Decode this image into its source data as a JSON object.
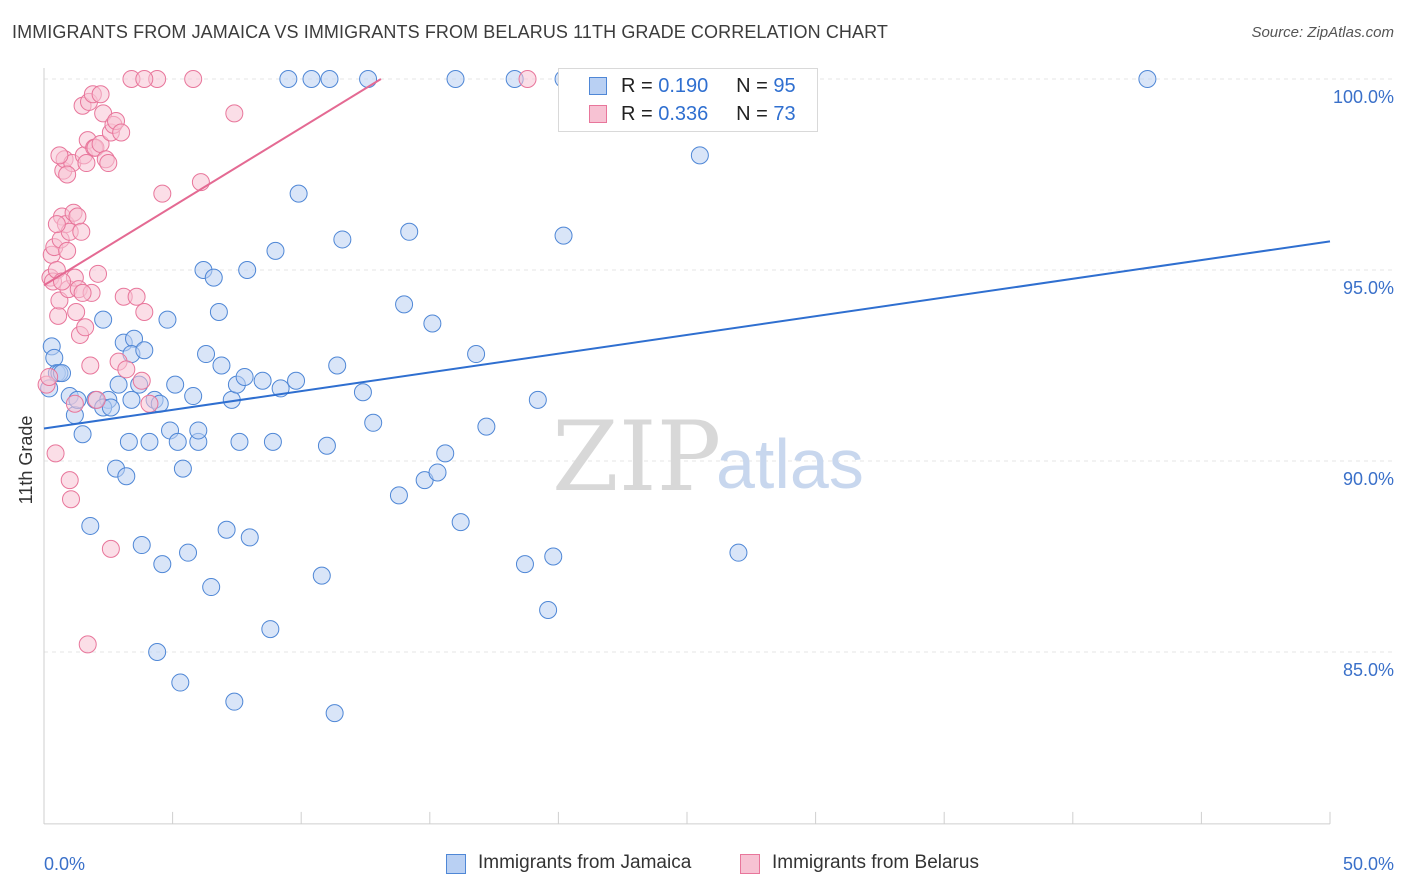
{
  "title": "IMMIGRANTS FROM JAMAICA VS IMMIGRANTS FROM BELARUS 11TH GRADE CORRELATION CHART",
  "source": "Source: ZipAtlas.com",
  "watermark": {
    "zip": "ZIP",
    "atlas": "atlas"
  },
  "colors": {
    "jamaica_fill": "#b9d0f3",
    "jamaica_stroke": "#4f87d6",
    "jamaica_line": "#2f6fd0",
    "belarus_fill": "#f7c2d3",
    "belarus_stroke": "#e8769b",
    "belarus_line": "#e46a93",
    "axis_label": "#3a70c9",
    "grid": "#e6e6e6"
  },
  "stats": [
    {
      "series": "Immigrants from Jamaica",
      "r_label": "R =",
      "r_value": "0.190",
      "n_label": "N =",
      "n_value": "95"
    },
    {
      "series": "Immigrants from Belarus",
      "r_label": "R =",
      "r_value": "0.336",
      "n_label": "N =",
      "n_value": "73"
    }
  ],
  "legend": [
    {
      "label": "Immigrants from Jamaica"
    },
    {
      "label": "Immigrants from Belarus"
    }
  ],
  "chart_data": {
    "type": "scatter",
    "title": "IMMIGRANTS FROM JAMAICA VS IMMIGRANTS FROM BELARUS 11TH GRADE CORRELATION CHART",
    "xlabel": "",
    "ylabel": "11th Grade",
    "xlim": [
      0,
      50
    ],
    "ylim": [
      80.5,
      100.5
    ],
    "x_tick_labels": [
      {
        "value": 0,
        "label": "0.0%"
      },
      {
        "value": 50,
        "label": "50.0%"
      }
    ],
    "y_tick_labels": [
      {
        "value": 100,
        "label": "100.0%"
      },
      {
        "value": 95,
        "label": "95.0%"
      },
      {
        "value": 90,
        "label": "90.0%"
      },
      {
        "value": 85,
        "label": "85.0%"
      }
    ],
    "x_minor_ticks": [
      0,
      5,
      10,
      15,
      20,
      25,
      30,
      35,
      40,
      45,
      50
    ],
    "grid_y": [
      100,
      95,
      90,
      85
    ],
    "series": [
      {
        "name": "Immigrants from Jamaica",
        "trend": {
          "x": [
            0,
            50
          ],
          "y": [
            90.85,
            95.75
          ]
        },
        "points": [
          [
            0.2,
            91.9
          ],
          [
            0.3,
            93.0
          ],
          [
            0.4,
            92.7
          ],
          [
            0.5,
            92.3
          ],
          [
            0.6,
            92.3
          ],
          [
            0.7,
            92.3
          ],
          [
            1.0,
            91.7
          ],
          [
            1.2,
            91.2
          ],
          [
            1.5,
            90.7
          ],
          [
            1.3,
            91.6
          ],
          [
            1.8,
            88.3
          ],
          [
            2.3,
            93.7
          ],
          [
            2.0,
            91.6
          ],
          [
            2.5,
            91.6
          ],
          [
            2.3,
            91.4
          ],
          [
            2.6,
            91.4
          ],
          [
            2.8,
            89.8
          ],
          [
            2.9,
            92.0
          ],
          [
            3.1,
            93.1
          ],
          [
            3.2,
            89.6
          ],
          [
            3.3,
            90.5
          ],
          [
            3.4,
            91.6
          ],
          [
            3.5,
            93.2
          ],
          [
            3.4,
            92.8
          ],
          [
            3.7,
            92.0
          ],
          [
            3.8,
            87.8
          ],
          [
            3.9,
            92.9
          ],
          [
            4.1,
            90.5
          ],
          [
            4.3,
            91.6
          ],
          [
            4.4,
            85.0
          ],
          [
            4.5,
            91.5
          ],
          [
            4.6,
            87.3
          ],
          [
            4.8,
            93.7
          ],
          [
            4.9,
            90.8
          ],
          [
            5.1,
            92.0
          ],
          [
            5.2,
            90.5
          ],
          [
            5.3,
            84.2
          ],
          [
            5.4,
            89.8
          ],
          [
            5.6,
            87.6
          ],
          [
            5.8,
            91.7
          ],
          [
            6.0,
            90.5
          ],
          [
            6.0,
            90.8
          ],
          [
            6.2,
            95.0
          ],
          [
            6.3,
            92.8
          ],
          [
            6.5,
            86.7
          ],
          [
            6.6,
            94.8
          ],
          [
            6.8,
            93.9
          ],
          [
            6.9,
            92.5
          ],
          [
            7.1,
            88.2
          ],
          [
            7.3,
            91.6
          ],
          [
            7.4,
            83.7
          ],
          [
            7.5,
            92.0
          ],
          [
            7.6,
            90.5
          ],
          [
            7.8,
            92.2
          ],
          [
            7.9,
            95.0
          ],
          [
            8.0,
            88.0
          ],
          [
            8.5,
            92.1
          ],
          [
            8.8,
            85.6
          ],
          [
            8.9,
            90.5
          ],
          [
            9.0,
            95.5
          ],
          [
            9.2,
            91.9
          ],
          [
            9.5,
            100.0
          ],
          [
            9.8,
            92.1
          ],
          [
            9.9,
            97.0
          ],
          [
            10.4,
            100.0
          ],
          [
            10.8,
            87.0
          ],
          [
            11.0,
            90.4
          ],
          [
            11.1,
            100.0
          ],
          [
            11.4,
            92.5
          ],
          [
            11.6,
            95.8
          ],
          [
            11.3,
            83.4
          ],
          [
            12.4,
            91.8
          ],
          [
            12.6,
            100.0
          ],
          [
            12.8,
            91.0
          ],
          [
            13.8,
            89.1
          ],
          [
            14.0,
            94.1
          ],
          [
            14.2,
            96.0
          ],
          [
            14.8,
            89.5
          ],
          [
            15.1,
            93.6
          ],
          [
            15.3,
            89.7
          ],
          [
            15.6,
            90.2
          ],
          [
            16.2,
            88.4
          ],
          [
            16.8,
            92.8
          ],
          [
            17.2,
            90.9
          ],
          [
            18.7,
            87.3
          ],
          [
            19.2,
            91.6
          ],
          [
            19.6,
            86.1
          ],
          [
            19.8,
            87.5
          ],
          [
            20.2,
            100.0
          ],
          [
            20.2,
            95.9
          ],
          [
            25.5,
            98.0
          ],
          [
            27.0,
            87.6
          ],
          [
            42.9,
            100.0
          ],
          [
            18.3,
            100.0
          ],
          [
            16.0,
            100.0
          ]
        ]
      },
      {
        "name": "Immigrants from Belarus",
        "trend": {
          "x": [
            0,
            13.1
          ],
          "y": [
            94.6,
            100.0
          ]
        },
        "points": [
          [
            0.1,
            92.0
          ],
          [
            0.2,
            92.2
          ],
          [
            0.25,
            94.8
          ],
          [
            0.3,
            95.4
          ],
          [
            0.35,
            94.7
          ],
          [
            0.4,
            95.6
          ],
          [
            0.45,
            90.2
          ],
          [
            0.5,
            95.0
          ],
          [
            0.55,
            93.8
          ],
          [
            0.6,
            94.2
          ],
          [
            0.65,
            95.8
          ],
          [
            0.7,
            96.4
          ],
          [
            0.75,
            97.6
          ],
          [
            0.8,
            97.9
          ],
          [
            0.85,
            96.2
          ],
          [
            0.9,
            95.5
          ],
          [
            0.95,
            94.5
          ],
          [
            1.0,
            96.0
          ],
          [
            1.05,
            89.0
          ],
          [
            1.1,
            97.8
          ],
          [
            1.15,
            96.5
          ],
          [
            1.2,
            94.8
          ],
          [
            1.25,
            93.9
          ],
          [
            1.3,
            96.4
          ],
          [
            1.35,
            94.5
          ],
          [
            1.4,
            93.3
          ],
          [
            1.45,
            96.0
          ],
          [
            1.5,
            99.3
          ],
          [
            1.55,
            98.0
          ],
          [
            1.6,
            93.5
          ],
          [
            1.65,
            97.8
          ],
          [
            1.7,
            98.4
          ],
          [
            1.75,
            99.4
          ],
          [
            1.8,
            92.5
          ],
          [
            1.85,
            94.4
          ],
          [
            1.9,
            99.6
          ],
          [
            1.95,
            98.2
          ],
          [
            2.0,
            98.2
          ],
          [
            2.05,
            91.6
          ],
          [
            2.1,
            94.9
          ],
          [
            2.2,
            98.3
          ],
          [
            2.3,
            99.1
          ],
          [
            2.4,
            97.9
          ],
          [
            2.5,
            97.8
          ],
          [
            2.6,
            98.6
          ],
          [
            2.7,
            98.8
          ],
          [
            2.8,
            98.9
          ],
          [
            2.9,
            92.6
          ],
          [
            3.0,
            98.6
          ],
          [
            3.1,
            94.3
          ],
          [
            3.2,
            92.4
          ],
          [
            3.4,
            100.0
          ],
          [
            3.6,
            94.3
          ],
          [
            3.8,
            92.1
          ],
          [
            3.9,
            93.9
          ],
          [
            4.1,
            91.5
          ],
          [
            4.4,
            100.0
          ],
          [
            4.6,
            97.0
          ],
          [
            5.8,
            100.0
          ],
          [
            6.1,
            97.3
          ],
          [
            7.4,
            99.1
          ],
          [
            2.6,
            87.7
          ],
          [
            1.0,
            89.5
          ],
          [
            0.6,
            98.0
          ],
          [
            0.9,
            97.5
          ],
          [
            1.5,
            94.4
          ],
          [
            1.7,
            85.2
          ],
          [
            1.2,
            91.5
          ],
          [
            0.7,
            94.7
          ],
          [
            0.5,
            96.2
          ],
          [
            2.2,
            99.6
          ],
          [
            18.8,
            100.0
          ],
          [
            3.9,
            100.0
          ]
        ]
      }
    ]
  }
}
